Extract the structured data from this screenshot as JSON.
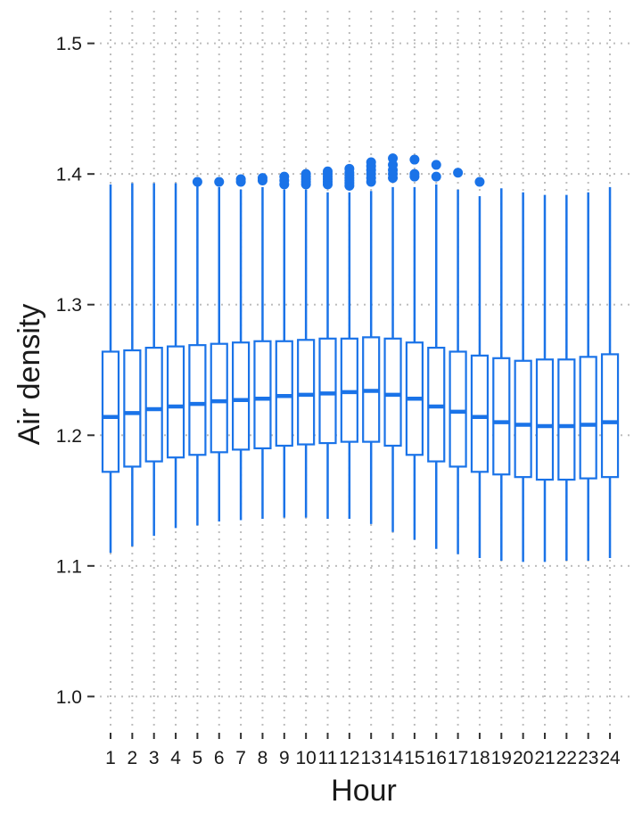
{
  "chart_data": {
    "type": "boxplot",
    "xlabel": "Hour",
    "ylabel": "Air density",
    "categories": [
      "1",
      "2",
      "3",
      "4",
      "5",
      "6",
      "7",
      "8",
      "9",
      "10",
      "11",
      "12",
      "13",
      "14",
      "15",
      "16",
      "17",
      "18",
      "19",
      "20",
      "21",
      "22",
      "23",
      "24"
    ],
    "y_ticks": [
      "1.0",
      "1.1",
      "1.2",
      "1.3",
      "1.4",
      "1.5"
    ],
    "ylim": [
      0.975,
      1.525
    ],
    "grid": true,
    "color": "#1a73e8",
    "boxes": [
      {
        "min": 1.11,
        "q1": 1.172,
        "median": 1.214,
        "q3": 1.264,
        "max": 1.392,
        "outliers": []
      },
      {
        "min": 1.115,
        "q1": 1.176,
        "median": 1.217,
        "q3": 1.265,
        "max": 1.393,
        "outliers": []
      },
      {
        "min": 1.123,
        "q1": 1.18,
        "median": 1.22,
        "q3": 1.267,
        "max": 1.393,
        "outliers": []
      },
      {
        "min": 1.129,
        "q1": 1.183,
        "median": 1.222,
        "q3": 1.268,
        "max": 1.393,
        "outliers": []
      },
      {
        "min": 1.131,
        "q1": 1.185,
        "median": 1.224,
        "q3": 1.269,
        "max": 1.392,
        "outliers": [
          1.394
        ]
      },
      {
        "min": 1.134,
        "q1": 1.187,
        "median": 1.226,
        "q3": 1.27,
        "max": 1.39,
        "outliers": [
          1.394
        ]
      },
      {
        "min": 1.135,
        "q1": 1.189,
        "median": 1.227,
        "q3": 1.271,
        "max": 1.388,
        "outliers": [
          1.394,
          1.396
        ]
      },
      {
        "min": 1.136,
        "q1": 1.19,
        "median": 1.228,
        "q3": 1.272,
        "max": 1.39,
        "outliers": [
          1.395,
          1.397
        ]
      },
      {
        "min": 1.137,
        "q1": 1.192,
        "median": 1.23,
        "q3": 1.272,
        "max": 1.388,
        "outliers": [
          1.392,
          1.395,
          1.398
        ]
      },
      {
        "min": 1.137,
        "q1": 1.193,
        "median": 1.231,
        "q3": 1.273,
        "max": 1.388,
        "outliers": [
          1.392,
          1.394,
          1.396,
          1.398,
          1.4
        ]
      },
      {
        "min": 1.136,
        "q1": 1.194,
        "median": 1.232,
        "q3": 1.274,
        "max": 1.386,
        "outliers": [
          1.392,
          1.394,
          1.396,
          1.398,
          1.4,
          1.402
        ]
      },
      {
        "min": 1.136,
        "q1": 1.195,
        "median": 1.233,
        "q3": 1.274,
        "max": 1.386,
        "outliers": [
          1.391,
          1.393,
          1.395,
          1.397,
          1.399,
          1.401,
          1.404
        ]
      },
      {
        "min": 1.132,
        "q1": 1.195,
        "median": 1.234,
        "q3": 1.275,
        "max": 1.387,
        "outliers": [
          1.394,
          1.397,
          1.4,
          1.403,
          1.406,
          1.409
        ]
      },
      {
        "min": 1.126,
        "q1": 1.192,
        "median": 1.231,
        "q3": 1.274,
        "max": 1.39,
        "outliers": [
          1.397,
          1.4,
          1.403,
          1.407,
          1.412
        ]
      },
      {
        "min": 1.12,
        "q1": 1.185,
        "median": 1.228,
        "q3": 1.271,
        "max": 1.39,
        "outliers": [
          1.398,
          1.4,
          1.411
        ]
      },
      {
        "min": 1.113,
        "q1": 1.18,
        "median": 1.222,
        "q3": 1.267,
        "max": 1.392,
        "outliers": [
          1.398,
          1.407
        ]
      },
      {
        "min": 1.109,
        "q1": 1.176,
        "median": 1.218,
        "q3": 1.264,
        "max": 1.388,
        "outliers": [
          1.401
        ]
      },
      {
        "min": 1.106,
        "q1": 1.172,
        "median": 1.214,
        "q3": 1.261,
        "max": 1.383,
        "outliers": [
          1.394
        ]
      },
      {
        "min": 1.104,
        "q1": 1.17,
        "median": 1.21,
        "q3": 1.259,
        "max": 1.389,
        "outliers": []
      },
      {
        "min": 1.103,
        "q1": 1.168,
        "median": 1.208,
        "q3": 1.257,
        "max": 1.386,
        "outliers": []
      },
      {
        "min": 1.103,
        "q1": 1.166,
        "median": 1.207,
        "q3": 1.258,
        "max": 1.384,
        "outliers": []
      },
      {
        "min": 1.104,
        "q1": 1.166,
        "median": 1.207,
        "q3": 1.258,
        "max": 1.384,
        "outliers": []
      },
      {
        "min": 1.104,
        "q1": 1.167,
        "median": 1.208,
        "q3": 1.26,
        "max": 1.386,
        "outliers": []
      },
      {
        "min": 1.106,
        "q1": 1.168,
        "median": 1.21,
        "q3": 1.262,
        "max": 1.39,
        "outliers": []
      }
    ]
  }
}
